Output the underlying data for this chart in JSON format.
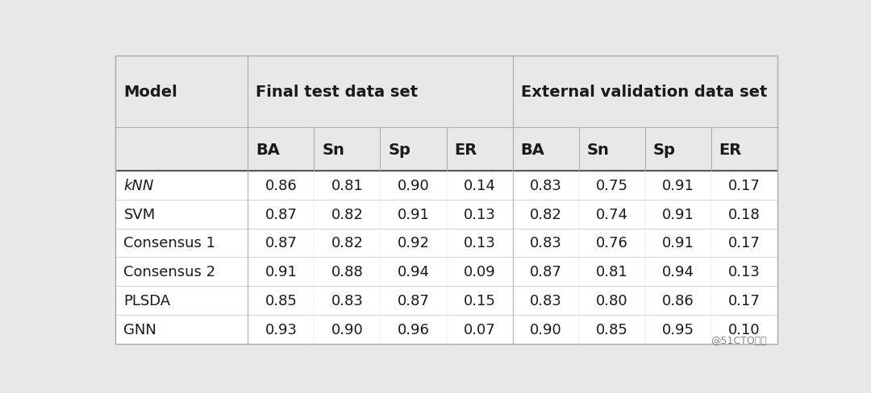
{
  "page_bg": "#e8e8e8",
  "header_bg": "#e8e8e8",
  "data_bg": "#ffffff",
  "line_color_outer": "#aaaaaa",
  "line_color_header_sep": "#888888",
  "line_color_vsep": "#aaaaaa",
  "line_color_row": "#cccccc",
  "col1_header": "Model",
  "group1_header": "Final test data set",
  "group2_header": "External validation data set",
  "sub_headers": [
    "BA",
    "Sn",
    "Sp",
    "ER",
    "BA",
    "Sn",
    "Sp",
    "ER"
  ],
  "row_labels": [
    "kNN",
    "SVM",
    "Consensus 1",
    "Consensus 2",
    "PLSDA",
    "GNN"
  ],
  "row_label_italic": [
    true,
    false,
    false,
    false,
    false,
    false
  ],
  "data": [
    [
      0.86,
      0.81,
      0.9,
      0.14,
      0.83,
      0.75,
      0.91,
      0.17
    ],
    [
      0.87,
      0.82,
      0.91,
      0.13,
      0.82,
      0.74,
      0.91,
      0.18
    ],
    [
      0.87,
      0.82,
      0.92,
      0.13,
      0.83,
      0.76,
      0.91,
      0.17
    ],
    [
      0.91,
      0.88,
      0.94,
      0.09,
      0.87,
      0.81,
      0.94,
      0.13
    ],
    [
      0.85,
      0.83,
      0.87,
      0.15,
      0.83,
      0.8,
      0.86,
      0.17
    ],
    [
      0.93,
      0.9,
      0.96,
      0.07,
      0.9,
      0.85,
      0.95,
      0.1
    ]
  ],
  "text_color": "#1a1a1a",
  "watermark": "@51CTO博客",
  "font_size_group": 14,
  "font_size_sub": 14,
  "font_size_data": 13,
  "font_size_model": 14,
  "font_size_watermark": 9
}
